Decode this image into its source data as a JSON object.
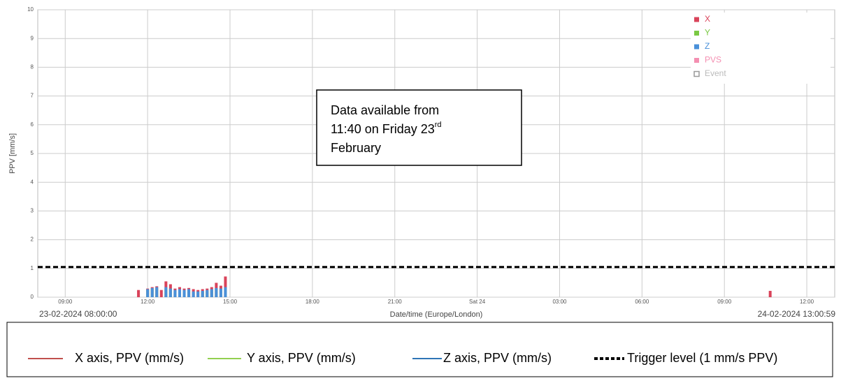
{
  "chart_data": {
    "type": "bar",
    "ylabel": "PPV [mm/s]",
    "xlabel": "Date/time (Europe/London)",
    "start_label": "23-02-2024 08:00:00",
    "end_label": "24-02-2024 13:00:59",
    "x": [
      11.667,
      12,
      12.167,
      12.333,
      12.5,
      12.667,
      12.833,
      13,
      13.167,
      13.333,
      13.5,
      13.667,
      13.833,
      14,
      14.167,
      14.333,
      14.5,
      14.667,
      14.833,
      34.667
    ],
    "series": [
      {
        "name": "X",
        "color": "#d9435a",
        "values": [
          0.25,
          0.3,
          0.35,
          0.38,
          0.25,
          0.55,
          0.45,
          0.3,
          0.35,
          0.3,
          0.32,
          0.28,
          0.25,
          0.28,
          0.3,
          0.35,
          0.5,
          0.4,
          0.72,
          0.22
        ]
      },
      {
        "name": "Y",
        "color": "#7ac943",
        "values": [
          null,
          0.25,
          0.3,
          0.3,
          null,
          0.3,
          0.3,
          0.2,
          0.25,
          0.2,
          0.25,
          null,
          null,
          0.2,
          0.2,
          0.25,
          0.3,
          0.3,
          0.3,
          null
        ]
      },
      {
        "name": "Z",
        "color": "#4a90d9",
        "values": [
          null,
          0.28,
          0.32,
          0.35,
          null,
          0.35,
          0.3,
          0.25,
          0.28,
          0.25,
          0.28,
          0.2,
          0.2,
          0.22,
          0.25,
          0.28,
          0.32,
          0.3,
          0.35,
          null
        ]
      }
    ],
    "extra_legend": [
      {
        "name": "PVS",
        "color": "#f48fb1"
      },
      {
        "name": "Event",
        "color": "#999999"
      }
    ],
    "threshold": {
      "value": 1.05,
      "color": "#000000"
    },
    "xlim": [
      8,
      37.0164
    ],
    "xticks": [
      {
        "value": 9,
        "label": "09:00"
      },
      {
        "value": 12,
        "label": "12:00"
      },
      {
        "value": 15,
        "label": "15:00"
      },
      {
        "value": 18,
        "label": "18:00"
      },
      {
        "value": 21,
        "label": "21:00"
      },
      {
        "value": 24,
        "label": "Sat 24"
      },
      {
        "value": 27,
        "label": "03:00"
      },
      {
        "value": 30,
        "label": "06:00"
      },
      {
        "value": 33,
        "label": "09:00"
      },
      {
        "value": 36,
        "label": "12:00"
      }
    ],
    "ylim": [
      0,
      10
    ],
    "yticks": [
      0,
      1,
      2,
      3,
      4,
      5,
      6,
      7,
      8,
      9,
      10
    ],
    "grid": true,
    "annotation": {
      "line1": "Data available from",
      "line2": "11:40 on Friday 23",
      "sup": "rd",
      "line3": "February"
    },
    "bottom_legend": [
      {
        "label": "X axis, PPV (mm/s)",
        "color": "#c0504d",
        "dash": false
      },
      {
        "label": "Y axis, PPV (mm/s)",
        "color": "#92d050",
        "dash": false
      },
      {
        "label": "Z axis, PPV (mm/s)",
        "color": "#2e75b6",
        "dash": false
      },
      {
        "label": "Trigger level (1 mm/s PPV)",
        "color": "#000000",
        "dash": true
      }
    ]
  }
}
